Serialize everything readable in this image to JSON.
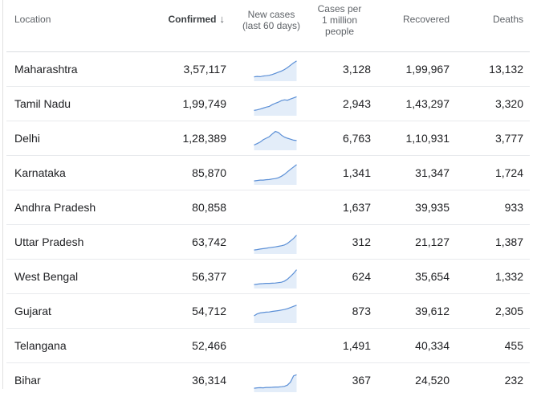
{
  "columns": {
    "location": "Location",
    "confirmed": "Confirmed",
    "sort_icon": "arrow-down-icon",
    "new_cases_line1": "New cases",
    "new_cases_line2": "(last 60 days)",
    "per_million_line1": "Cases per",
    "per_million_line2": "1 million",
    "per_million_line3": "people",
    "recovered": "Recovered",
    "deaths": "Deaths"
  },
  "colors": {
    "spark_stroke": "#5b8fd6",
    "spark_fill": "#e3edf9"
  },
  "rows": [
    {
      "location": "Maharashtra",
      "confirmed": "3,57,117",
      "per_million": "3,128",
      "recovered": "1,99,967",
      "deaths": "13,132",
      "trend": [
        0.1,
        0.12,
        0.11,
        0.14,
        0.16,
        0.18,
        0.22,
        0.28,
        0.34,
        0.4,
        0.48,
        0.58,
        0.7,
        0.82,
        0.92
      ]
    },
    {
      "location": "Tamil Nadu",
      "confirmed": "1,99,749",
      "per_million": "2,943",
      "recovered": "1,43,297",
      "deaths": "3,320",
      "trend": [
        0.15,
        0.18,
        0.22,
        0.27,
        0.32,
        0.36,
        0.45,
        0.52,
        0.58,
        0.66,
        0.7,
        0.68,
        0.74,
        0.8,
        0.86
      ]
    },
    {
      "location": "Delhi",
      "confirmed": "1,28,389",
      "per_million": "6,763",
      "recovered": "1,10,931",
      "deaths": "3,777",
      "trend": [
        0.15,
        0.22,
        0.3,
        0.42,
        0.5,
        0.58,
        0.72,
        0.85,
        0.8,
        0.66,
        0.56,
        0.5,
        0.45,
        0.4,
        0.38
      ]
    },
    {
      "location": "Karnataka",
      "confirmed": "85,870",
      "per_million": "1,341",
      "recovered": "31,347",
      "deaths": "1,724",
      "trend": [
        0.08,
        0.1,
        0.12,
        0.12,
        0.14,
        0.15,
        0.18,
        0.2,
        0.24,
        0.32,
        0.42,
        0.55,
        0.68,
        0.8,
        0.92
      ]
    },
    {
      "location": "Andhra Pradesh",
      "confirmed": "80,858",
      "per_million": "1,637",
      "recovered": "39,935",
      "deaths": "933",
      "trend": []
    },
    {
      "location": "Uttar Pradesh",
      "confirmed": "63,742",
      "per_million": "312",
      "recovered": "21,127",
      "deaths": "1,387",
      "trend": [
        0.08,
        0.1,
        0.13,
        0.15,
        0.17,
        0.2,
        0.22,
        0.24,
        0.27,
        0.3,
        0.34,
        0.42,
        0.55,
        0.68,
        0.85
      ]
    },
    {
      "location": "West Bengal",
      "confirmed": "56,377",
      "per_million": "624",
      "recovered": "35,654",
      "deaths": "1,332",
      "trend": [
        0.08,
        0.1,
        0.12,
        0.13,
        0.14,
        0.14,
        0.15,
        0.16,
        0.18,
        0.2,
        0.26,
        0.36,
        0.5,
        0.66,
        0.85
      ]
    },
    {
      "location": "Gujarat",
      "confirmed": "54,712",
      "per_million": "873",
      "recovered": "39,612",
      "deaths": "2,305",
      "trend": [
        0.25,
        0.35,
        0.4,
        0.42,
        0.44,
        0.45,
        0.48,
        0.5,
        0.52,
        0.55,
        0.58,
        0.62,
        0.68,
        0.74,
        0.8
      ]
    },
    {
      "location": "Telangana",
      "confirmed": "52,466",
      "per_million": "1,491",
      "recovered": "40,334",
      "deaths": "455",
      "trend": []
    },
    {
      "location": "Bihar",
      "confirmed": "36,314",
      "per_million": "367",
      "recovered": "24,520",
      "deaths": "232",
      "trend": [
        0.08,
        0.1,
        0.11,
        0.1,
        0.12,
        0.12,
        0.13,
        0.14,
        0.14,
        0.16,
        0.18,
        0.24,
        0.4,
        0.72,
        0.78
      ]
    }
  ]
}
